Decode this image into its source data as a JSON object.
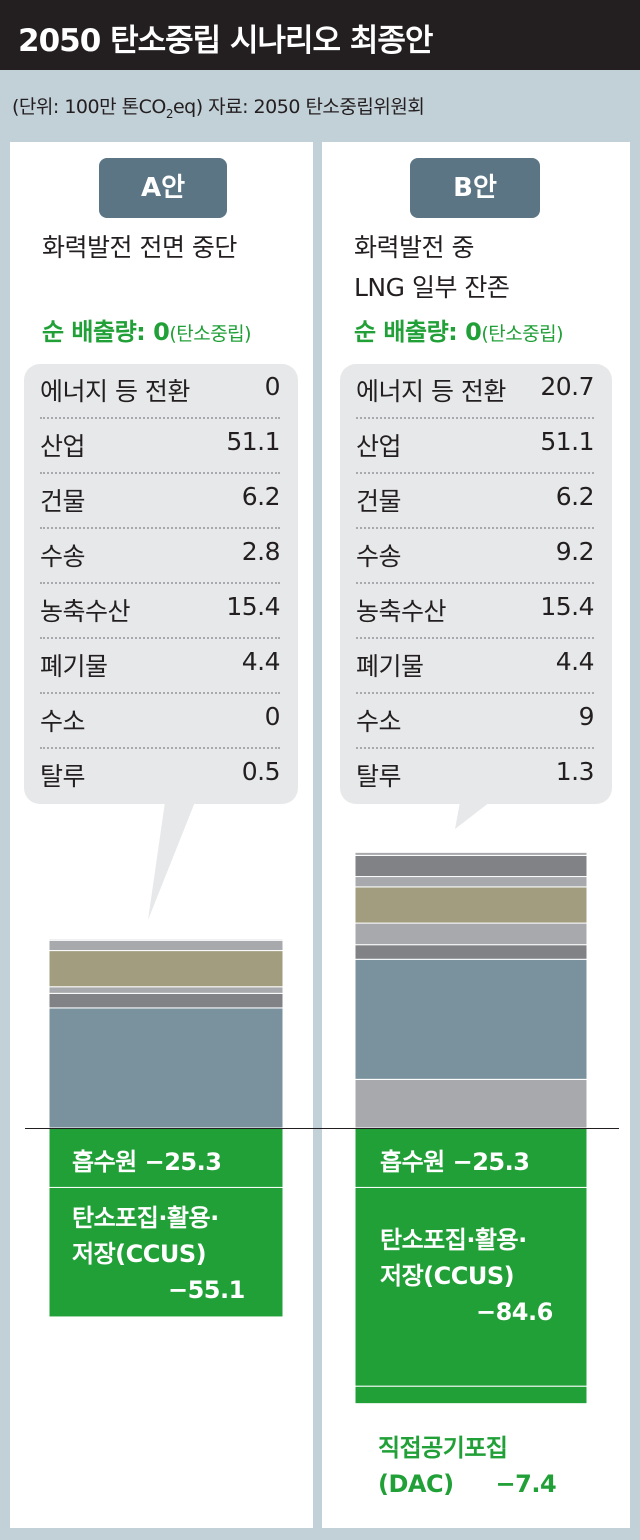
{
  "title": "2050 탄소중립 시나리오 최종안",
  "unit_note": {
    "prefix": "(단위: 100만 톤CO",
    "sub": "2",
    "suffix": "eq)  자료: 2050 탄소중립위원회"
  },
  "colors": {
    "title_bg": "#231f20",
    "badge": "#5b7585",
    "green": "#21a038",
    "bar_blue_gray": "#7a929d",
    "bar_gray": "#a7a9ac",
    "bar_dark_gray": "#808285",
    "bar_olive": "#a29d7f",
    "background": "#c2d0d8"
  },
  "scenarios": [
    {
      "badge": "A안",
      "desc_lines": [
        "화력발전 전면 중단"
      ],
      "net_label": "순 배출량: 0",
      "net_note": "(탄소중립)",
      "rows": [
        {
          "label": "에너지 등 전환",
          "value": "0"
        },
        {
          "label": "산업",
          "value": "51.1"
        },
        {
          "label": "건물",
          "value": "6.2"
        },
        {
          "label": "수송",
          "value": "2.8"
        },
        {
          "label": "농축수산",
          "value": "15.4"
        },
        {
          "label": "폐기물",
          "value": "4.4"
        },
        {
          "label": "수소",
          "value": "0"
        },
        {
          "label": "탈루",
          "value": "0.5"
        }
      ],
      "sinks": {
        "absorb": "흡수원  −25.3",
        "ccus_line1": "탄소포집·활용·",
        "ccus_line2": "저장(CCUS)",
        "ccus_value": "−55.1"
      }
    },
    {
      "badge": "B안",
      "desc_lines": [
        "화력발전 중",
        "LNG 일부 잔존"
      ],
      "net_label": "순 배출량: 0",
      "net_note": "(탄소중립)",
      "rows": [
        {
          "label": "에너지 등 전환",
          "value": "20.7"
        },
        {
          "label": "산업",
          "value": "51.1"
        },
        {
          "label": "건물",
          "value": "6.2"
        },
        {
          "label": "수송",
          "value": "9.2"
        },
        {
          "label": "농축수산",
          "value": "15.4"
        },
        {
          "label": "폐기물",
          "value": "4.4"
        },
        {
          "label": "수소",
          "value": "9"
        },
        {
          "label": "탈루",
          "value": "1.3"
        }
      ],
      "sinks": {
        "absorb": "흡수원  −25.3",
        "ccus_line1": "탄소포집·활용·",
        "ccus_line2": "저장(CCUS)",
        "ccus_value": "−84.6",
        "dac_line1": "직접공기포집",
        "dac_line2": "(DAC)",
        "dac_value": "−7.4"
      }
    }
  ],
  "chart_data": [
    {
      "type": "bar",
      "stacked": true,
      "scenario": "A안",
      "categories": [
        "에너지 등 전환",
        "산업",
        "건물",
        "수송",
        "농축수산",
        "폐기물",
        "수소",
        "탈루",
        "흡수원",
        "탄소포집·활용·저장(CCUS)"
      ],
      "values": [
        0,
        51.1,
        6.2,
        2.8,
        15.4,
        4.4,
        0,
        0.5,
        -25.3,
        -55.1
      ],
      "series_colors": [
        "#a7a9ac",
        "#7a929d",
        "#808285",
        "#a7a9ac",
        "#a29d7f",
        "#a7a9ac",
        "#808285",
        "#a7a9ac",
        "#21a038",
        "#21a038"
      ],
      "net": 0
    },
    {
      "type": "bar",
      "stacked": true,
      "scenario": "B안",
      "categories": [
        "에너지 등 전환",
        "산업",
        "건물",
        "수송",
        "농축수산",
        "폐기물",
        "수소",
        "탈루",
        "흡수원",
        "탄소포집·활용·저장(CCUS)",
        "직접공기포집(DAC)"
      ],
      "values": [
        20.7,
        51.1,
        6.2,
        9.2,
        15.4,
        4.4,
        9,
        1.3,
        -25.3,
        -84.6,
        -7.4
      ],
      "series_colors": [
        "#a7a9ac",
        "#7a929d",
        "#808285",
        "#a7a9ac",
        "#a29d7f",
        "#a7a9ac",
        "#808285",
        "#a7a9ac",
        "#21a038",
        "#21a038",
        "#21a038"
      ],
      "net": 0
    }
  ]
}
